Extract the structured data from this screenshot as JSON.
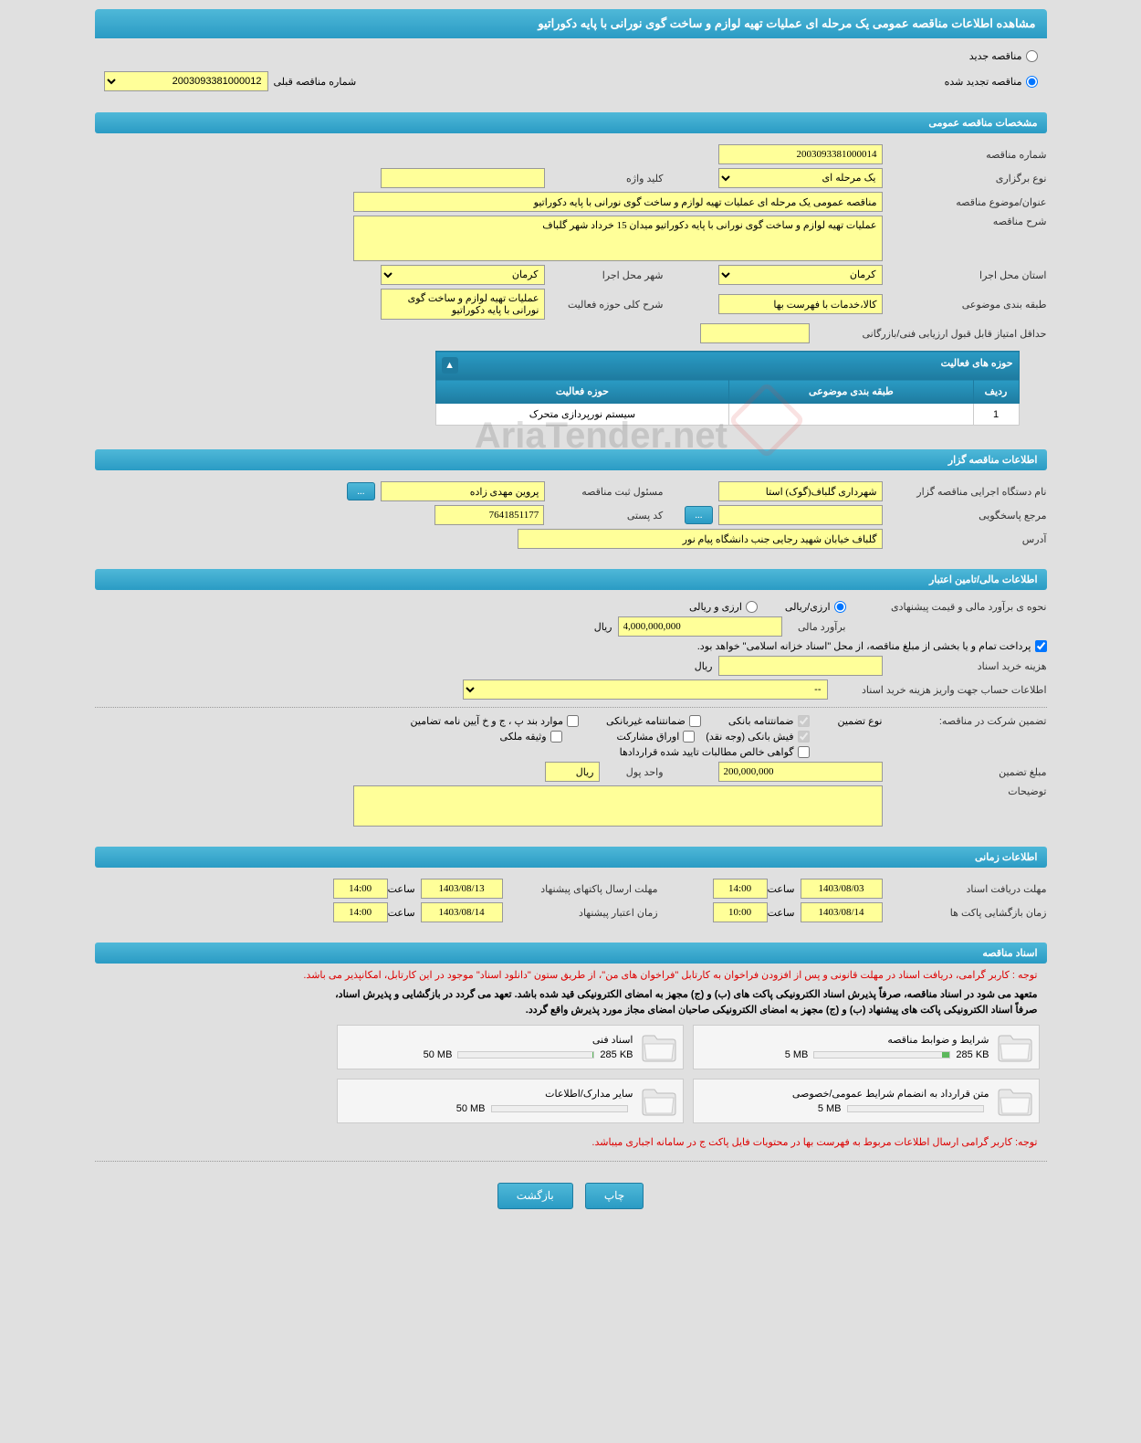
{
  "page_title": "مشاهده اطلاعات مناقصه عمومی یک مرحله ای عملیات تهیه لوازم و ساخت گوی نورانی با پایه دکوراتیو",
  "top_radio": {
    "new_tender": "مناقصه جدید",
    "renewed_tender": "مناقصه تجدید شده"
  },
  "prev_number": {
    "label": "شماره مناقصه قبلی",
    "value": "2003093381000012"
  },
  "sections": {
    "general": "مشخصات مناقصه عمومی",
    "organizer": "اطلاعات مناقصه گزار",
    "financial": "اطلاعات مالی/تامین اعتبار",
    "timing": "اطلاعات زمانی",
    "documents": "اسناد مناقصه"
  },
  "general": {
    "tender_number_label": "شماره مناقصه",
    "tender_number": "2003093381000014",
    "holding_type_label": "نوع برگزاری",
    "holding_type": "یک مرحله ای",
    "keyword_label": "کلید واژه",
    "keyword": "",
    "subject_label": "عنوان/موضوع مناقصه",
    "subject": "مناقصه عمومی یک مرحله ای عملیات تهیه لوازم و ساخت گوی نورانی با پایه دکوراتیو",
    "description_label": "شرح مناقصه",
    "description": "عملیات تهیه لوازم و ساخت گوی نورانی با پایه دکوراتیو میدان 15 خرداد شهر گلباف",
    "province_label": "استان محل اجرا",
    "province": "کرمان",
    "city_label": "شهر محل اجرا",
    "city": "کرمان",
    "category_label": "طبقه بندی موضوعی",
    "category": "کالا،خدمات با فهرست بها",
    "activity_scope_label": "شرح کلی حوزه فعالیت",
    "activity_scope": "عملیات تهیه لوازم و ساخت گوی نورانی با پایه دکوراتیو",
    "min_score_label": "حداقل امتیاز قابل قبول ارزیابی فنی/بازرگانی",
    "min_score": ""
  },
  "activity_table": {
    "title": "حوزه های فعالیت",
    "cols": {
      "row": "ردیف",
      "category": "طبقه بندی موضوعی",
      "scope": "حوزه فعالیت"
    },
    "rows": [
      {
        "idx": "1",
        "category": "",
        "scope": "سیستم نورپردازی متحرک"
      }
    ]
  },
  "organizer": {
    "agency_label": "نام دستگاه اجرایی مناقصه گزار",
    "agency": "شهرداری گلباف(گوک) استا",
    "registrar_label": "مسئول ثبت مناقصه",
    "registrar": "پروین مهدی زاده",
    "btn_dots": "...",
    "responder_label": "مرجع پاسخگویی",
    "responder": "",
    "postal_label": "کد پستی",
    "postal": "7641851177",
    "address_label": "آدرس",
    "address": "گلباف خیابان شهید رجایی جنب دانشگاه پیام نور"
  },
  "financial": {
    "estimate_method_label": "نحوه ی برآورد مالی و قیمت پیشنهادی",
    "radio_rial": "ارزی/ریالی",
    "radio_currency": "ارزی و ریالی",
    "estimate_label": "برآورد مالی",
    "estimate": "4,000,000,000",
    "unit_rial": "ریال",
    "treasury_note": "پرداخت تمام و یا بخشی از مبلغ مناقصه، از محل \"اسناد خزانه اسلامی\" خواهد بود.",
    "doc_cost_label": "هزینه خرید اسناد",
    "doc_cost": "",
    "account_info_label": "اطلاعات حساب جهت واریز هزینه خرید اسناد",
    "account_info": "--",
    "guarantee_label": "تضمین شرکت در مناقصه:",
    "guarantee_type_label": "نوع تضمین",
    "chk_bank_guarantee": "ضمانتنامه بانکی",
    "chk_nonbank_guarantee": "ضمانتنامه غیربانکی",
    "chk_bylaw": "موارد بند پ ، ج و خ آیین نامه تضامین",
    "chk_bank_receipt": "فیش بانکی (وجه نقد)",
    "chk_participation": "اوراق مشارکت",
    "chk_property": "وثیقه ملکی",
    "chk_contract_claims": "گواهی خالص مطالبات تایید شده قراردادها",
    "guarantee_amount_label": "مبلغ تضمین",
    "guarantee_amount": "200,000,000",
    "currency_unit_label": "واحد پول",
    "currency_unit": "ریال",
    "notes_label": "توضیحات",
    "notes": ""
  },
  "timing": {
    "doc_deadline_label": "مهلت دریافت اسناد",
    "doc_deadline_date": "1403/08/03",
    "doc_deadline_time": "14:00",
    "time_label": "ساعت",
    "packet_deadline_label": "مهلت ارسال پاکتهای پیشنهاد",
    "packet_deadline_date": "1403/08/13",
    "packet_deadline_time": "14:00",
    "opening_label": "زمان بازگشایی پاکت ها",
    "opening_date": "1403/08/14",
    "opening_time": "10:00",
    "validity_label": "زمان اعتبار پیشنهاد",
    "validity_date": "1403/08/14",
    "validity_time": "14:00"
  },
  "documents": {
    "note1": "توجه : کاربر گرامی، دریافت اسناد در مهلت قانونی و پس از افزودن فراخوان به کارتابل \"فراخوان های من\"، از طریق ستون \"دانلود اسناد\" موجود در این کارتابل، امکانپذیر می باشد.",
    "note2a": "متعهد می شود در اسناد مناقصه، صرفاً پذیرش اسناد الکترونیکی پاکت های (ب) و (ج) مجهز به امضای الکترونیکی قید شده باشد. تعهد می گردد در بازگشایی و پذیرش اسناد،",
    "note2b": "صرفاً اسناد الکترونیکی پاکت های پیشنهاد (ب) و (ج) مجهز به امضای الکترونیکی صاحبان امضای مجاز مورد پذیرش واقع گردد.",
    "files": [
      {
        "name": "شرایط و ضوابط مناقصه",
        "size": "285 KB",
        "max": "5 MB",
        "fill": 6
      },
      {
        "name": "اسناد فنی",
        "size": "285 KB",
        "max": "50 MB",
        "fill": 1
      },
      {
        "name": "متن قرارداد به انضمام شرایط عمومی/خصوصی",
        "size": "",
        "max": "5 MB",
        "fill": 0
      },
      {
        "name": "سایر مدارک/اطلاعات",
        "size": "",
        "max": "50 MB",
        "fill": 0
      }
    ],
    "note3": "توجه: کاربر گرامی ارسال اطلاعات مربوط به فهرست بها در محتویات فایل پاکت ج در سامانه اجباری میباشد."
  },
  "buttons": {
    "print": "چاپ",
    "back": "بازگشت"
  },
  "watermark": "AriaTender.net",
  "colors": {
    "header_grad_top": "#4fb8d8",
    "header_grad_bottom": "#2a9bc4",
    "input_bg": "#ffff99",
    "page_bg": "#e0e0e0",
    "red": "#d00"
  }
}
